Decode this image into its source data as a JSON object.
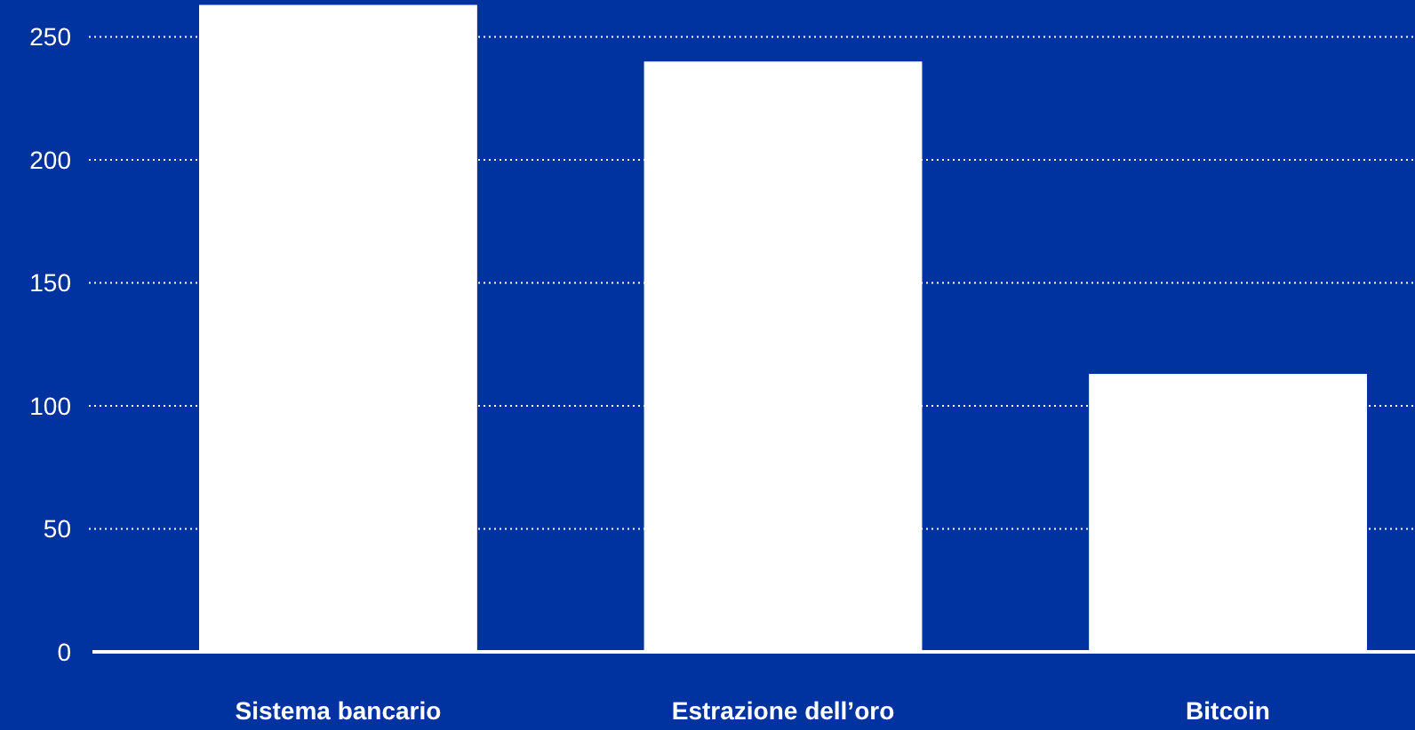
{
  "chart_data": {
    "type": "bar",
    "categories": [
      "Sistema bancario",
      "Estrazione dell’oro",
      "Bitcoin"
    ],
    "values": [
      263,
      240,
      113
    ],
    "color": "#ffffff",
    "ylim": [
      0,
      265
    ],
    "yticks": [
      0,
      50,
      100,
      150,
      200,
      250
    ],
    "grid": "y"
  }
}
